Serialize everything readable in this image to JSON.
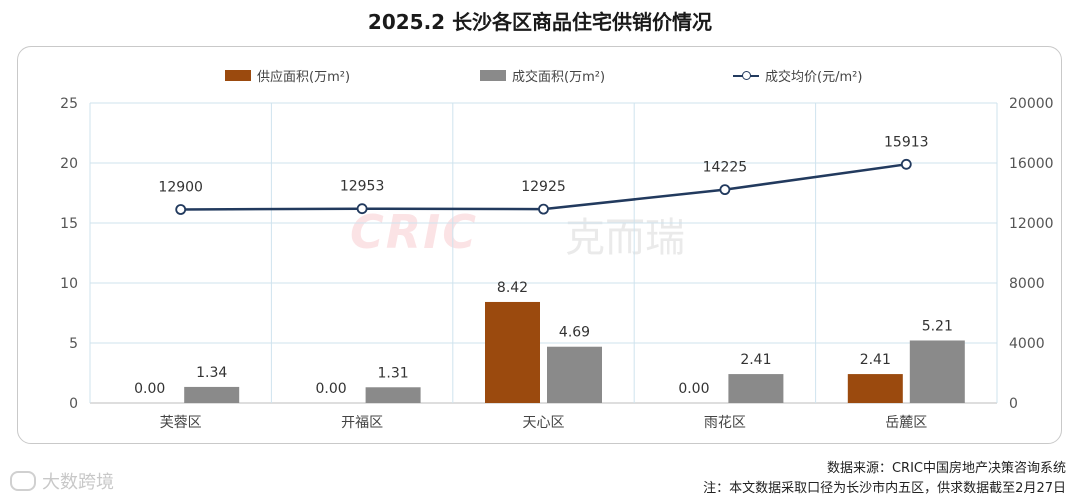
{
  "title": "2025.2 长沙各区商品住宅供销价情况",
  "legend": {
    "supply": "供应面积(万m²)",
    "sold": "成交面积(万m²)",
    "price": "成交均价(元/m²)"
  },
  "colors": {
    "supply": "#9b4a0e",
    "sold": "#8a8a8a",
    "price": "#223a5e",
    "grid": "#cfe3ee"
  },
  "watermark": {
    "brand_en": "CRIC",
    "brand_cn": "克而瑞"
  },
  "footer": {
    "source": "数据来源：CRIC中国房地产决策咨询系统",
    "note": "注：本文数据采取口径为长沙市内五区，供求数据截至2月27日"
  },
  "logo": {
    "text": "大数跨境"
  },
  "chart_data": {
    "type": "bar",
    "categories": [
      "芙蓉区",
      "开福区",
      "天心区",
      "雨花区",
      "岳麓区"
    ],
    "series": [
      {
        "name": "供应面积(万m²)",
        "type": "bar",
        "axis": "left",
        "values": [
          0.0,
          0.0,
          8.42,
          0.0,
          2.41
        ]
      },
      {
        "name": "成交面积(万m²)",
        "type": "bar",
        "axis": "left",
        "values": [
          1.34,
          1.31,
          4.69,
          2.41,
          5.21
        ]
      },
      {
        "name": "成交均价(元/m²)",
        "type": "line",
        "axis": "right",
        "values": [
          12900,
          12953,
          12925,
          14225,
          15913
        ]
      }
    ],
    "data_labels": {
      "supply": [
        "0.00",
        "0.00",
        "8.42",
        "0.00",
        "2.41"
      ],
      "sold": [
        "1.34",
        "1.31",
        "4.69",
        "2.41",
        "5.21"
      ],
      "price": [
        "12900",
        "12953",
        "12925",
        "14225",
        "15913"
      ]
    },
    "ylim_left": [
      0,
      25
    ],
    "yticks_left": [
      0,
      5,
      10,
      15,
      20,
      25
    ],
    "ylim_right": [
      0,
      20000
    ],
    "yticks_right": [
      0,
      4000,
      8000,
      12000,
      16000,
      20000
    ],
    "grid": true,
    "legend_position": "top"
  }
}
